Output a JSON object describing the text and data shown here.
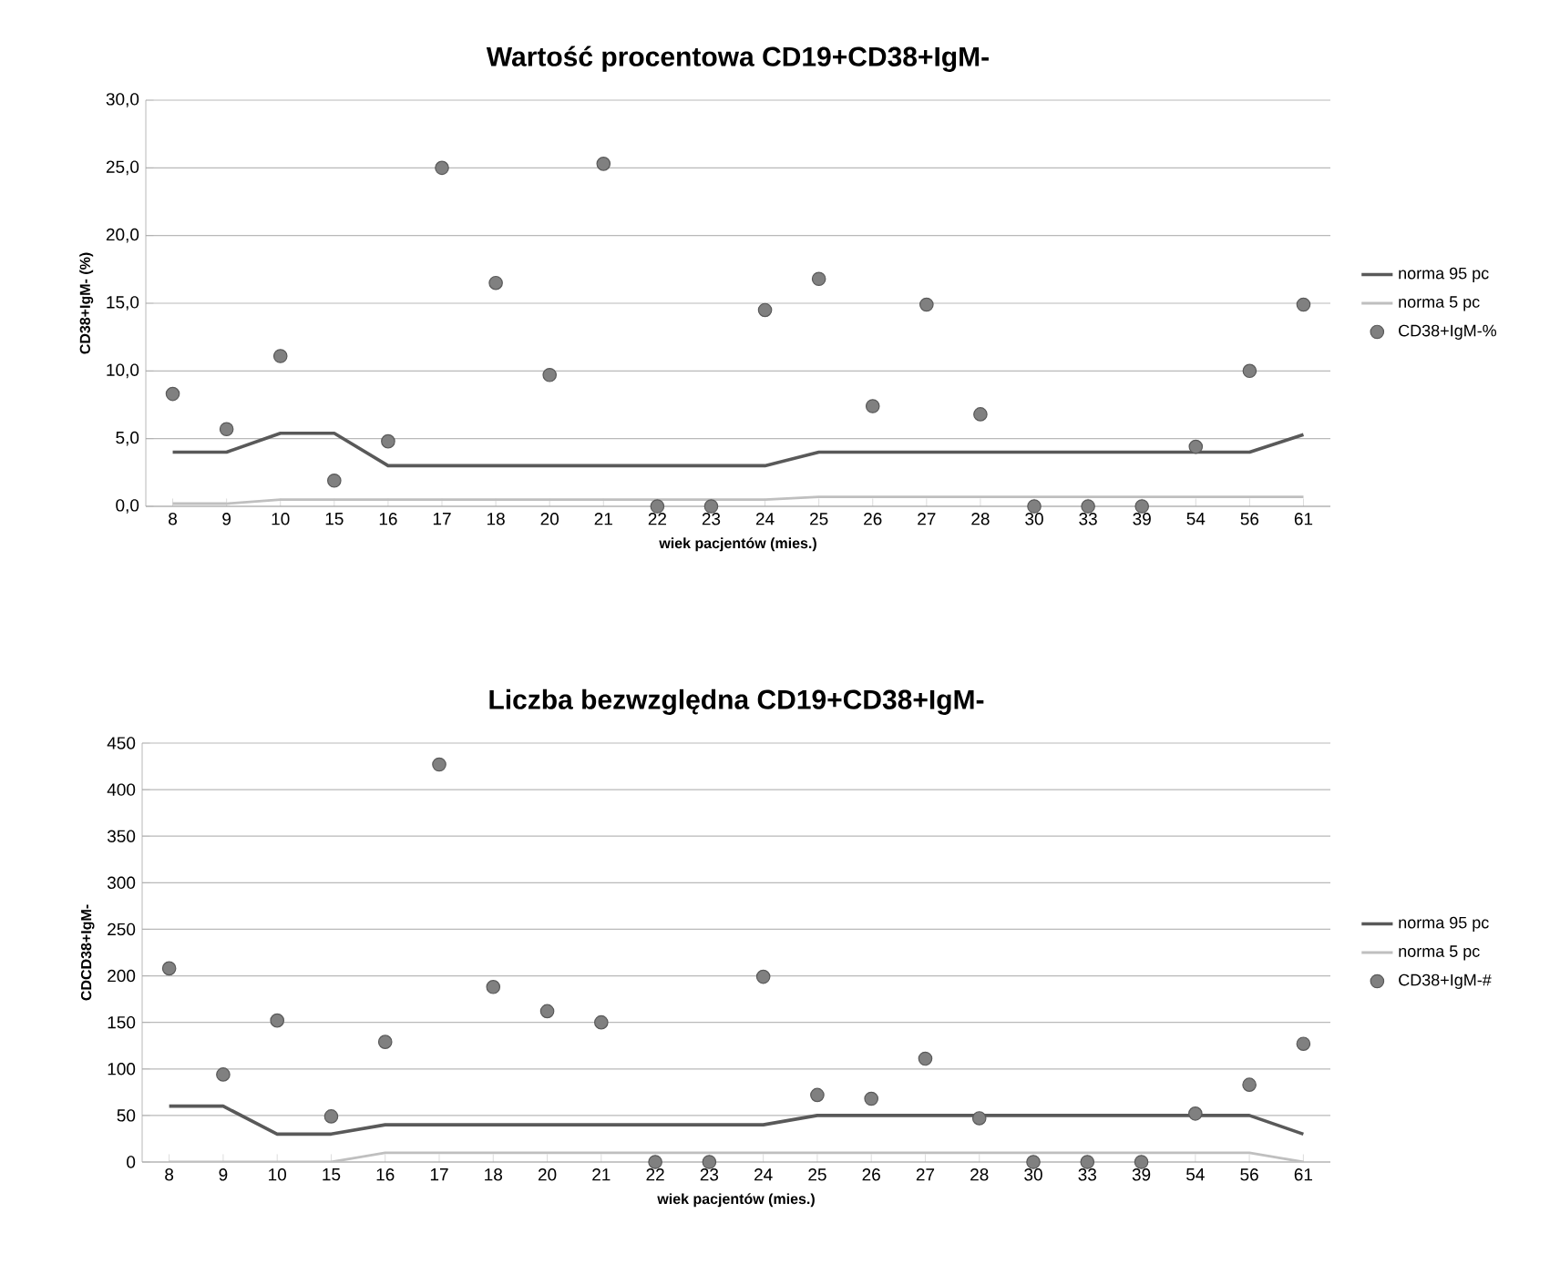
{
  "chart_data": [
    {
      "type": "line",
      "title": "Wartość procentowa CD19+CD38+IgM-",
      "xlabel": "wiek pacjentów (mies.)",
      "ylabel": "CD38+IgM- (%)",
      "categories": [
        "8",
        "9",
        "10",
        "15",
        "16",
        "17",
        "18",
        "20",
        "21",
        "22",
        "23",
        "24",
        "25",
        "26",
        "27",
        "28",
        "30",
        "33",
        "39",
        "54",
        "56",
        "61"
      ],
      "ylim": [
        0,
        30
      ],
      "yticks": [
        {
          "value": 0,
          "label": "0,0"
        },
        {
          "value": 5,
          "label": "5,0"
        },
        {
          "value": 10,
          "label": "10,0"
        },
        {
          "value": 15,
          "label": "15,0"
        },
        {
          "value": 20,
          "label": "20,0"
        },
        {
          "value": 25,
          "label": "25,0"
        },
        {
          "value": 30,
          "label": "30,0"
        }
      ],
      "grid": "y",
      "legend": "right",
      "series": [
        {
          "name": "norma 95 pc",
          "type": "line",
          "color": "#595959",
          "values": [
            4,
            4,
            5.4,
            5.4,
            3,
            3,
            3,
            3,
            3,
            3,
            3,
            3,
            4,
            4,
            4,
            4,
            4,
            4,
            4,
            4,
            4,
            5.3
          ]
        },
        {
          "name": "norma 5 pc",
          "type": "line",
          "color": "#bfbfbf",
          "values": [
            0.2,
            0.2,
            0.5,
            0.5,
            0.5,
            0.5,
            0.5,
            0.5,
            0.5,
            0.5,
            0.5,
            0.5,
            0.7,
            0.7,
            0.7,
            0.7,
            0.7,
            0.7,
            0.7,
            0.7,
            0.7,
            0.7
          ]
        },
        {
          "name": "CD38+IgM-%",
          "type": "scatter",
          "marker": "circle",
          "color": "#808080",
          "values": [
            8.3,
            5.7,
            11.1,
            1.9,
            4.8,
            25.0,
            16.5,
            9.7,
            25.3,
            0,
            0,
            14.5,
            16.8,
            7.4,
            14.9,
            6.8,
            0,
            0,
            0,
            4.4,
            10.0,
            14.9
          ]
        }
      ]
    },
    {
      "type": "line",
      "title": "Liczba bezwzględna CD19+CD38+IgM-",
      "xlabel": "wiek pacjentów (mies.)",
      "ylabel": "CDCD38+IgM-",
      "categories": [
        "8",
        "9",
        "10",
        "15",
        "16",
        "17",
        "18",
        "20",
        "21",
        "22",
        "23",
        "24",
        "25",
        "26",
        "27",
        "28",
        "30",
        "33",
        "39",
        "54",
        "56",
        "61"
      ],
      "ylim": [
        0,
        450
      ],
      "yticks": [
        0,
        50,
        100,
        150,
        200,
        250,
        300,
        350,
        400,
        450
      ],
      "grid": "y",
      "legend": "right",
      "series": [
        {
          "name": "norma 95 pc",
          "type": "line",
          "color": "#595959",
          "values": [
            60,
            60,
            30,
            30,
            40,
            40,
            40,
            40,
            40,
            40,
            40,
            40,
            50,
            50,
            50,
            50,
            50,
            50,
            50,
            50,
            50,
            30
          ]
        },
        {
          "name": "norma 5 pc",
          "type": "line",
          "color": "#bfbfbf",
          "values": [
            0,
            0,
            0,
            0,
            10,
            10,
            10,
            10,
            10,
            10,
            10,
            10,
            10,
            10,
            10,
            10,
            10,
            10,
            10,
            10,
            10,
            0
          ]
        },
        {
          "name": "CD38+IgM-#",
          "type": "scatter",
          "marker": "circle",
          "color": "#808080",
          "values": [
            208,
            94,
            152,
            49,
            129,
            427,
            188,
            162,
            150,
            0,
            0,
            199,
            72,
            68,
            111,
            47,
            0,
            0,
            0,
            52,
            83,
            127
          ]
        }
      ]
    }
  ]
}
